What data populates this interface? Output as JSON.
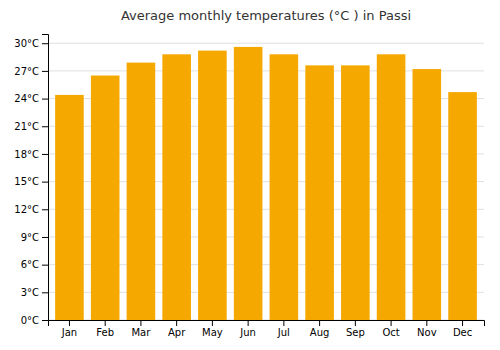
{
  "chart_data": {
    "type": "bar",
    "title": "Average monthly temperatures (°C ) in Passi",
    "categories": [
      "Jan",
      "Feb",
      "Mar",
      "Apr",
      "May",
      "Jun",
      "Jul",
      "Aug",
      "Sep",
      "Oct",
      "Nov",
      "Dec"
    ],
    "values": [
      24.4,
      26.5,
      27.9,
      28.8,
      29.2,
      29.6,
      28.8,
      27.6,
      27.6,
      28.8,
      27.2,
      24.7
    ],
    "color": "#F5A800",
    "ylim": [
      0,
      31
    ],
    "yticks": [
      {
        "value": 0,
        "label": "0°C"
      },
      {
        "value": 3,
        "label": "3°C"
      },
      {
        "value": 6,
        "label": "6°C"
      },
      {
        "value": 9,
        "label": "9°C"
      },
      {
        "value": 12,
        "label": "12°C"
      },
      {
        "value": 15,
        "label": "15°C"
      },
      {
        "value": 18,
        "label": "18°C"
      },
      {
        "value": 21,
        "label": "21°C"
      },
      {
        "value": 24,
        "label": "24°C"
      },
      {
        "value": 27,
        "label": "27°C"
      },
      {
        "value": 30,
        "label": "30°C"
      }
    ],
    "grid": true
  }
}
